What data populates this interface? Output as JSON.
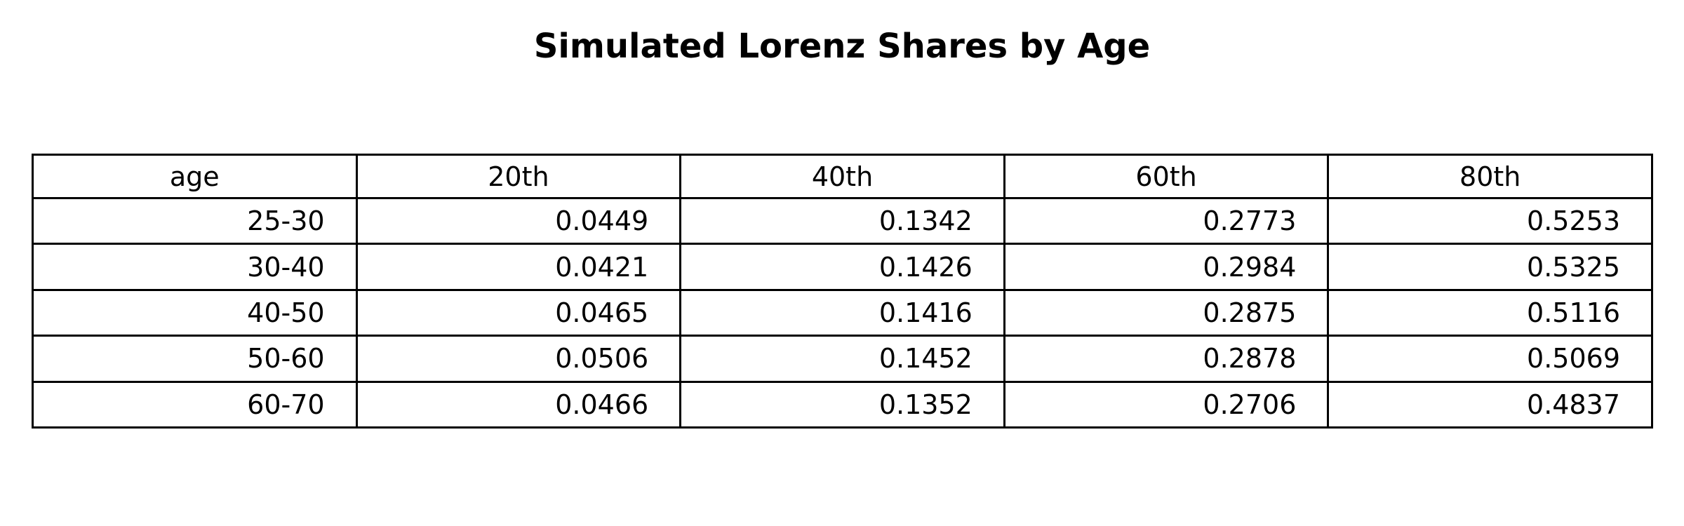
{
  "chart_data": {
    "type": "table",
    "title": "Simulated Lorenz Shares by Age",
    "columns": [
      "age",
      "20th",
      "40th",
      "60th",
      "80th"
    ],
    "rows": [
      [
        "25-30",
        "0.0449",
        "0.1342",
        "0.2773",
        "0.5253"
      ],
      [
        "30-40",
        "0.0421",
        "0.1426",
        "0.2984",
        "0.5325"
      ],
      [
        "40-50",
        "0.0465",
        "0.1416",
        "0.2875",
        "0.5116"
      ],
      [
        "50-60",
        "0.0506",
        "0.1452",
        "0.2878",
        "0.5069"
      ],
      [
        "60-70",
        "0.0466",
        "0.1352",
        "0.2706",
        "0.4837"
      ]
    ]
  }
}
